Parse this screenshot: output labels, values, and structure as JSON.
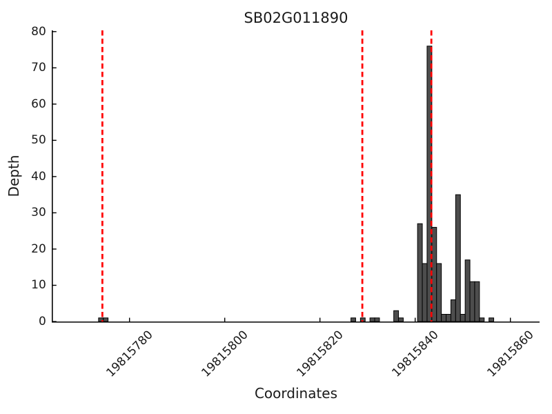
{
  "chart_data": {
    "type": "bar",
    "title": "SB02G011890",
    "xlabel": "Coordinates",
    "ylabel": "Depth",
    "x_ticks": [
      19815780,
      19815800,
      19815820,
      19815840,
      19815860
    ],
    "y_ticks": [
      0,
      10,
      20,
      30,
      40,
      50,
      60,
      70,
      80
    ],
    "xlim": [
      19815764,
      19815866
    ],
    "ylim": [
      0,
      80
    ],
    "grid": false,
    "legend": "none",
    "bar_width": 1,
    "bar_fill": "#4d4d4d",
    "bar_edge": "#000000",
    "vline_color": "#ff0000",
    "vline_style": "dashed",
    "vlines": [
      19815774.3,
      19815828.9,
      19815843.4
    ],
    "bars": [
      {
        "x": 19815774,
        "depth": 1
      },
      {
        "x": 19815775,
        "depth": 1
      },
      {
        "x": 19815827,
        "depth": 1
      },
      {
        "x": 19815829,
        "depth": 1
      },
      {
        "x": 19815831,
        "depth": 1
      },
      {
        "x": 19815832,
        "depth": 1
      },
      {
        "x": 19815836,
        "depth": 3
      },
      {
        "x": 19815837,
        "depth": 1
      },
      {
        "x": 19815841,
        "depth": 27
      },
      {
        "x": 19815842,
        "depth": 16
      },
      {
        "x": 19815843,
        "depth": 76
      },
      {
        "x": 19815844,
        "depth": 26
      },
      {
        "x": 19815845,
        "depth": 16
      },
      {
        "x": 19815846,
        "depth": 2
      },
      {
        "x": 19815847,
        "depth": 2
      },
      {
        "x": 19815848,
        "depth": 6
      },
      {
        "x": 19815849,
        "depth": 35
      },
      {
        "x": 19815850,
        "depth": 2
      },
      {
        "x": 19815851,
        "depth": 17
      },
      {
        "x": 19815852,
        "depth": 11
      },
      {
        "x": 19815853,
        "depth": 11
      },
      {
        "x": 19815854,
        "depth": 1
      },
      {
        "x": 19815856,
        "depth": 1
      }
    ]
  }
}
